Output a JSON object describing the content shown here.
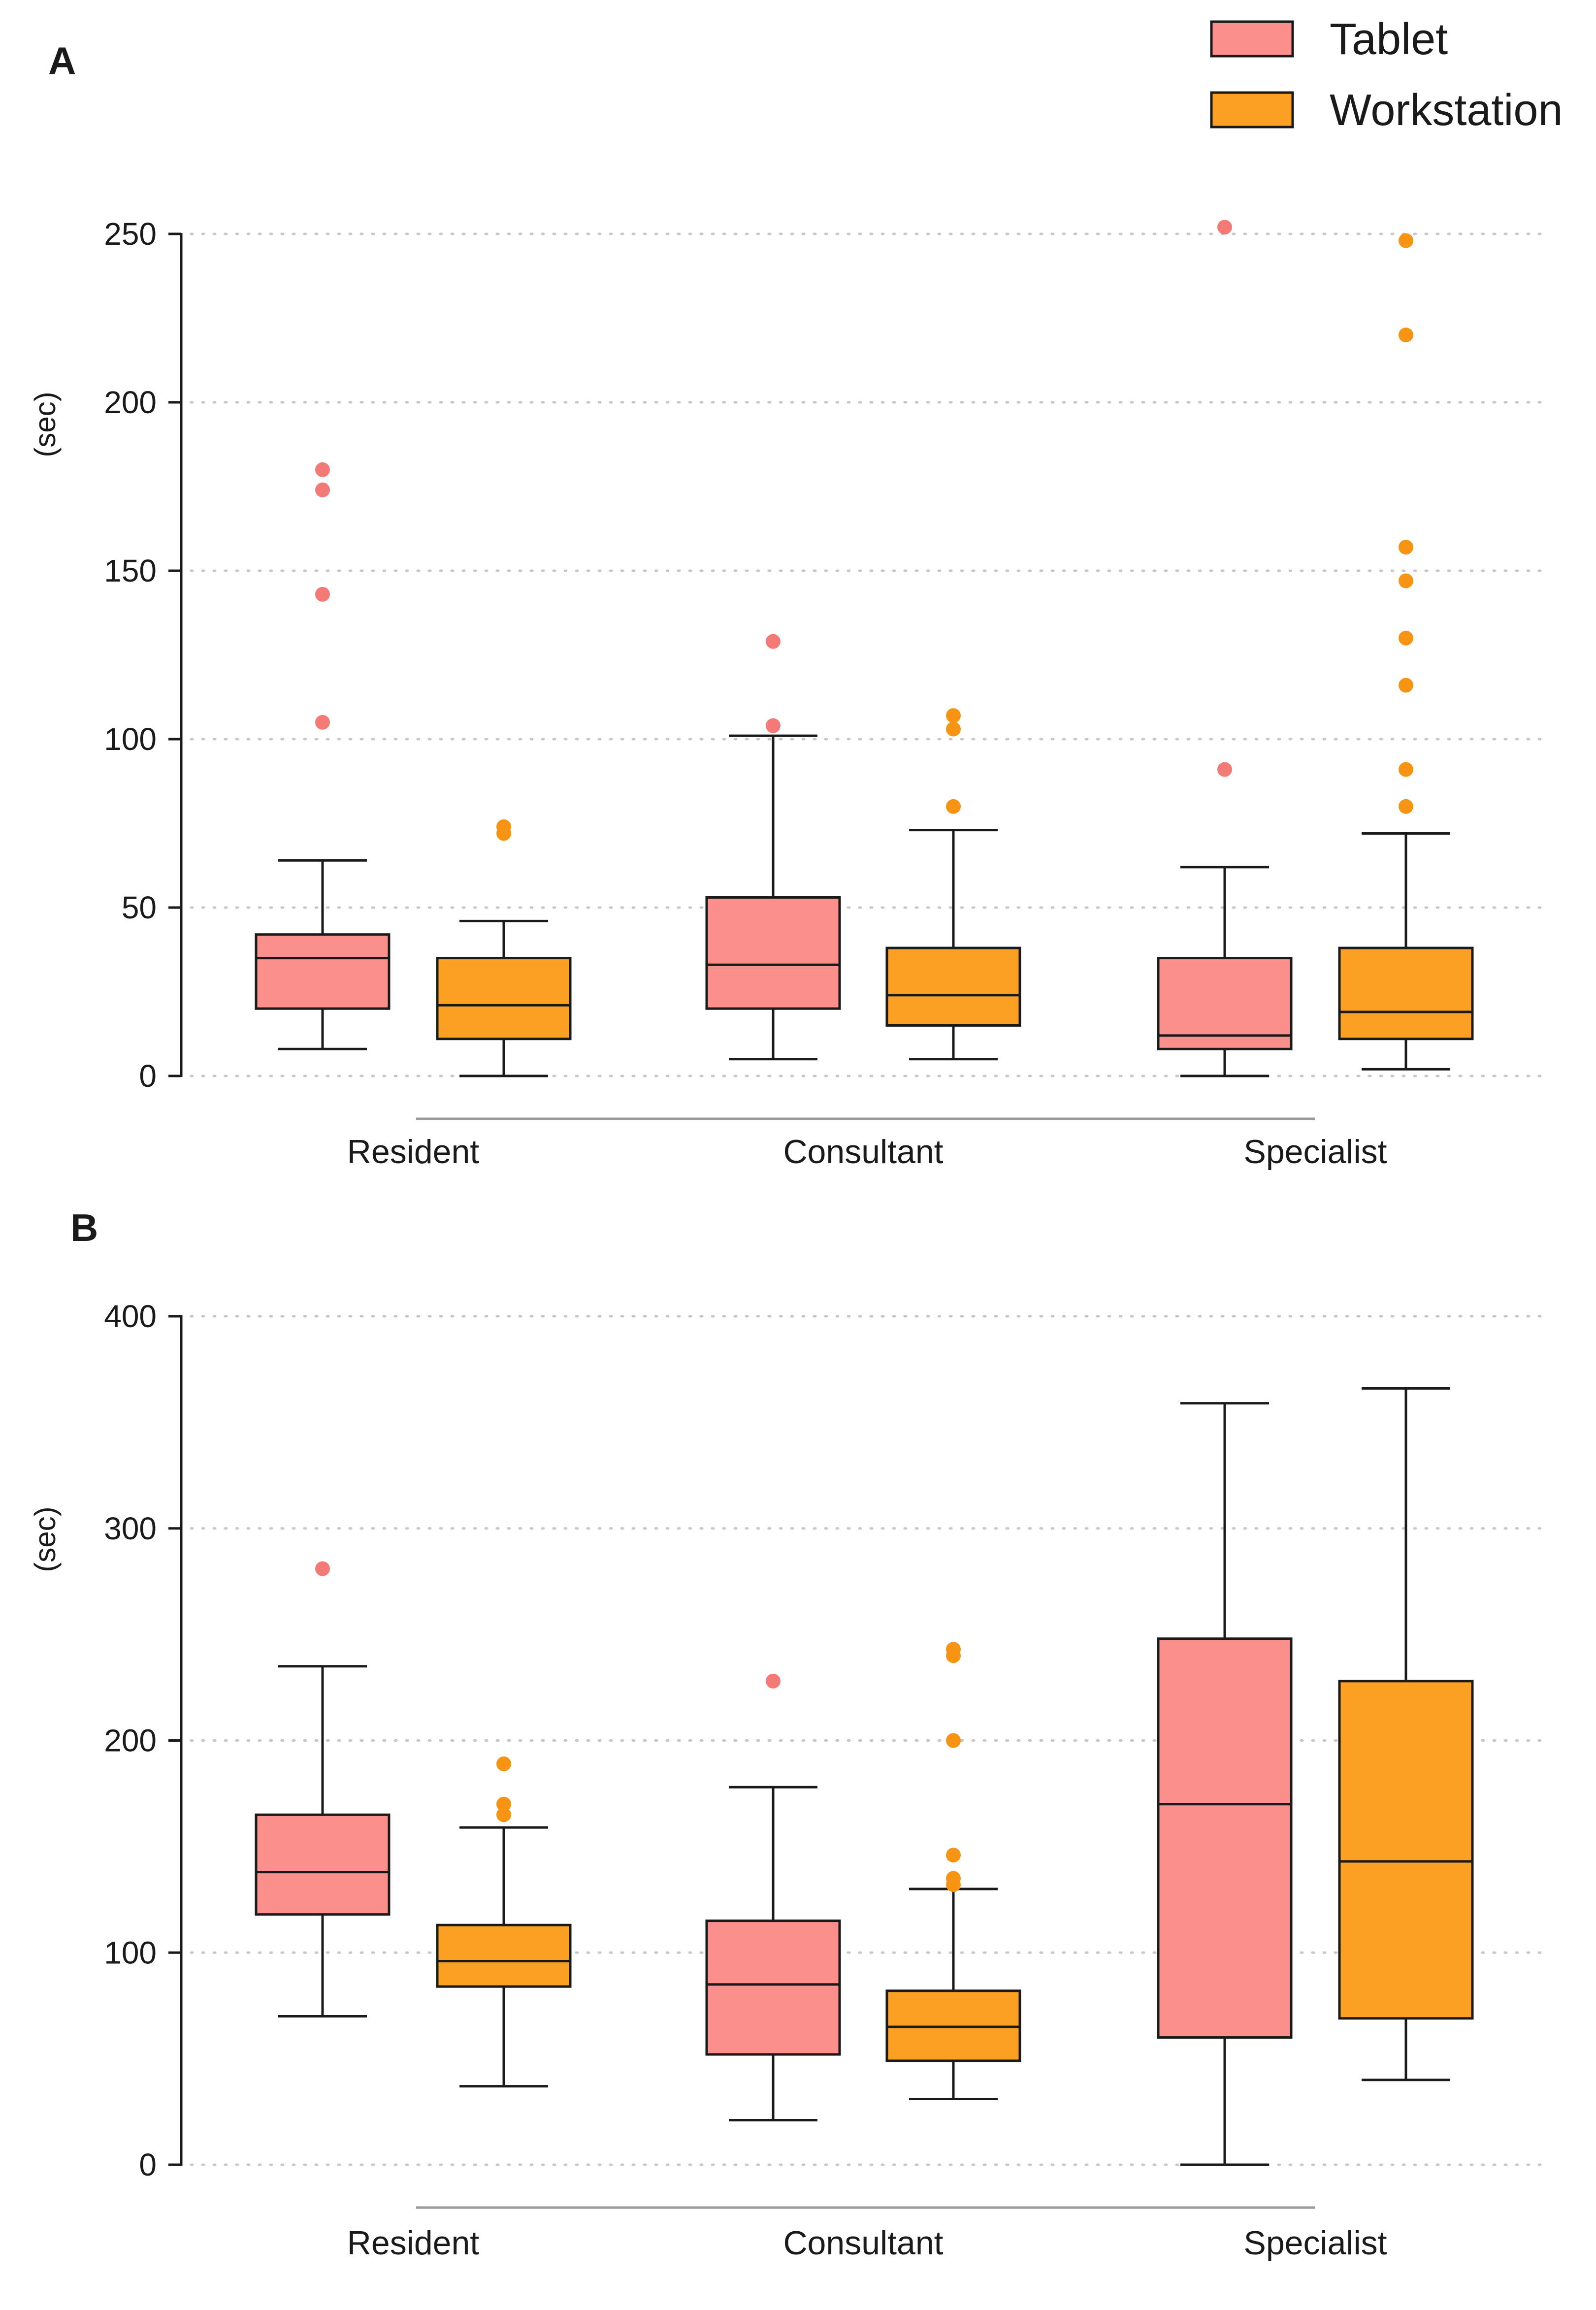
{
  "colors": {
    "tablet": "#fb8f8b",
    "workstation": "#fca024",
    "tablet_point": "#f47a78",
    "workstation_point": "#f79414"
  },
  "legend": {
    "entries": [
      {
        "series": "tablet",
        "label": "Tablet"
      },
      {
        "series": "workstation",
        "label": "Workstation"
      }
    ],
    "position": "top-right"
  },
  "chart_data": [
    {
      "panel": "A",
      "type": "box",
      "ylabel": "(sec)",
      "xlabel": "",
      "ylim": [
        0,
        250
      ],
      "yticks": [
        0,
        50,
        100,
        150,
        200,
        250
      ],
      "grid": true,
      "categories": [
        "Resident",
        "Consultant",
        "Specialist"
      ],
      "series": [
        {
          "name": "Tablet",
          "key": "tablet",
          "boxes": [
            {
              "category": "Resident",
              "min": 8,
              "q1": 20,
              "median": 35,
              "q3": 42,
              "max": 64,
              "outliers": [
                105,
                143,
                174,
                180
              ]
            },
            {
              "category": "Consultant",
              "min": 5,
              "q1": 20,
              "median": 33,
              "q3": 53,
              "max": 101,
              "outliers": [
                104,
                129
              ]
            },
            {
              "category": "Specialist",
              "min": 0,
              "q1": 8,
              "median": 12,
              "q3": 35,
              "max": 62,
              "outliers": [
                91,
                252
              ]
            }
          ]
        },
        {
          "name": "Workstation",
          "key": "workstation",
          "boxes": [
            {
              "category": "Resident",
              "min": 0,
              "q1": 11,
              "median": 21,
              "q3": 35,
              "max": 46,
              "outliers": [
                72,
                74
              ]
            },
            {
              "category": "Consultant",
              "min": 5,
              "q1": 15,
              "median": 24,
              "q3": 38,
              "max": 73,
              "outliers": [
                80,
                103,
                107
              ]
            },
            {
              "category": "Specialist",
              "min": 2,
              "q1": 11,
              "median": 19,
              "q3": 38,
              "max": 72,
              "outliers": [
                80,
                91,
                116,
                130,
                147,
                157,
                220,
                248
              ]
            }
          ]
        }
      ]
    },
    {
      "panel": "B",
      "type": "box",
      "ylabel": "(sec)",
      "xlabel": "",
      "ylim": [
        0,
        400
      ],
      "yticks": [
        0,
        100,
        200,
        300,
        400
      ],
      "grid": true,
      "categories": [
        "Resident",
        "Consultant",
        "Specialist"
      ],
      "series": [
        {
          "name": "Tablet",
          "key": "tablet",
          "boxes": [
            {
              "category": "Resident",
              "min": 70,
              "q1": 118,
              "median": 138,
              "q3": 165,
              "max": 235,
              "outliers": [
                281
              ]
            },
            {
              "category": "Consultant",
              "min": 21,
              "q1": 52,
              "median": 85,
              "q3": 115,
              "max": 178,
              "outliers": [
                228
              ]
            },
            {
              "category": "Specialist",
              "min": 0,
              "q1": 60,
              "median": 170,
              "q3": 248,
              "max": 359,
              "outliers": []
            }
          ]
        },
        {
          "name": "Workstation",
          "key": "workstation",
          "boxes": [
            {
              "category": "Resident",
              "min": 37,
              "q1": 84,
              "median": 96,
              "q3": 113,
              "max": 159,
              "outliers": [
                165,
                170,
                189
              ]
            },
            {
              "category": "Consultant",
              "min": 31,
              "q1": 49,
              "median": 65,
              "q3": 82,
              "max": 130,
              "outliers": [
                132,
                135,
                146,
                200,
                240,
                243
              ]
            },
            {
              "category": "Specialist",
              "min": 40,
              "q1": 69,
              "median": 143,
              "q3": 228,
              "max": 366,
              "outliers": []
            }
          ]
        }
      ]
    }
  ]
}
